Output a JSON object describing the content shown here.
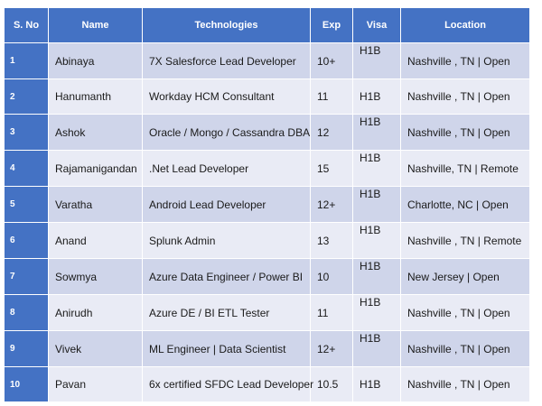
{
  "table": {
    "headers": [
      "S. No",
      "Name",
      "Technologies",
      "Exp",
      "Visa",
      "Location"
    ],
    "rows": [
      {
        "sno": "1",
        "name": "Abinaya",
        "tech": "7X Salesforce Lead Developer",
        "exp": "10+",
        "visa": "H1B",
        "loc": "Nashville , TN | Open"
      },
      {
        "sno": "2",
        "name": "Hanumanth",
        "tech": "Workday HCM Consultant",
        "exp": "11",
        "visa": "H1B",
        "loc": "Nashville , TN | Open"
      },
      {
        "sno": "3",
        "name": "Ashok",
        "tech": "Oracle / Mongo / Cassandra DBA",
        "exp": "12",
        "visa": "H1B",
        "loc": "Nashville , TN | Open"
      },
      {
        "sno": "4",
        "name": "Rajamanigandan",
        "tech": ".Net Lead Developer",
        "exp": "15",
        "visa": "H1B",
        "loc": "Nashville, TN | Remote"
      },
      {
        "sno": "5",
        "name": "Varatha",
        "tech": "Android Lead Developer",
        "exp": "12+",
        "visa": "H1B",
        "loc": "Charlotte, NC | Open"
      },
      {
        "sno": "6",
        "name": "Anand",
        "tech": "Splunk Admin",
        "exp": "13",
        "visa": "H1B",
        "loc": "Nashville , TN | Remote"
      },
      {
        "sno": "7",
        "name": "Sowmya",
        "tech": "Azure Data Engineer / Power BI",
        "exp": "10",
        "visa": "H1B",
        "loc": "New Jersey | Open"
      },
      {
        "sno": "8",
        "name": "Anirudh",
        "tech": "Azure DE / BI ETL Tester",
        "exp": "11",
        "visa": "H1B",
        "loc": "Nashville , TN | Open"
      },
      {
        "sno": "9",
        "name": "Vivek",
        "tech": "ML Engineer | Data Scientist",
        "exp": "12+",
        "visa": "H1B",
        "loc": "Nashville , TN | Open"
      },
      {
        "sno": "10",
        "name": "Pavan",
        "tech": "6x certified SFDC Lead Developer",
        "exp": "10.5",
        "visa": "H1B",
        "loc": "Nashville , TN | Open"
      }
    ]
  },
  "colors": {
    "header_bg": "#4472c4",
    "row_odd": "#cfd5ea",
    "row_even": "#e9ebf5"
  }
}
